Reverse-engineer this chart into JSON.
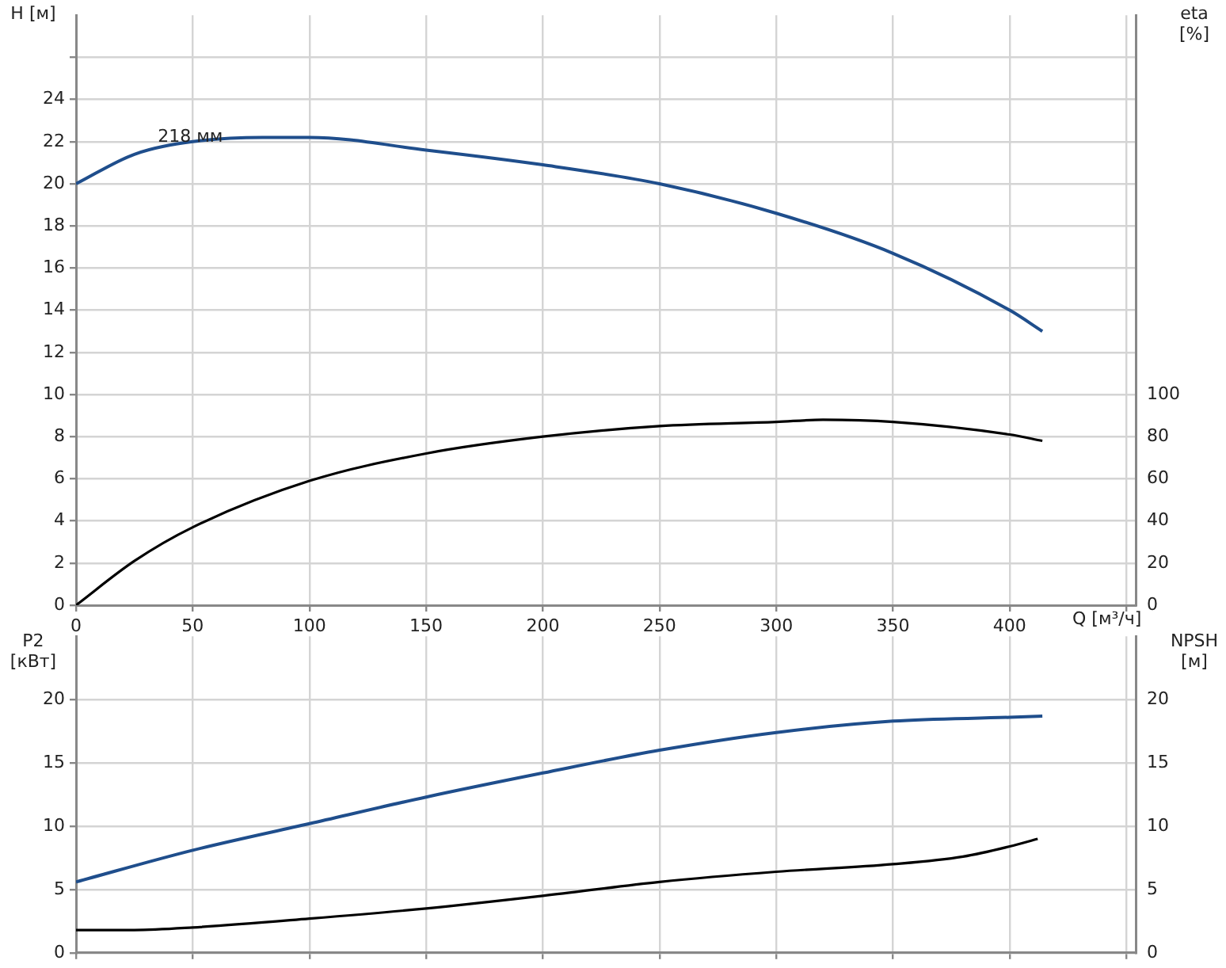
{
  "chart_data": [
    {
      "type": "line",
      "xlabel": "Q [м³/ч]",
      "ylabel": "H [м]",
      "y2label": "eta [%]",
      "xlim": [
        0,
        454
      ],
      "xticks": [
        0,
        50,
        100,
        150,
        200,
        250,
        300,
        350,
        400,
        {
          "value": 450,
          "label": null
        }
      ],
      "ylim": [
        0,
        28
      ],
      "yticks": [
        0,
        2,
        4,
        6,
        8,
        10,
        12,
        14,
        16,
        18,
        20,
        22,
        24,
        {
          "value": 26,
          "label": null
        }
      ],
      "y2lim": [
        0,
        280
      ],
      "y2ticks": [
        0,
        20,
        40,
        60,
        80,
        100
      ],
      "grid": true,
      "legend": false,
      "marker": "none",
      "annotations": [
        {
          "text": "218 мм",
          "x": 35,
          "y": 21.8
        }
      ],
      "series": [
        {
          "color": "#1f4e8c",
          "x": [
            0,
            25,
            50,
            80,
            100,
            150,
            200,
            250,
            300,
            350,
            400,
            414
          ],
          "values": [
            20,
            21.4,
            22,
            22.2,
            22.2,
            21.6,
            20.9,
            20,
            18.6,
            16.7,
            14,
            13
          ]
        },
        {
          "color": "#000000",
          "axis": "y2",
          "x": [
            0,
            25,
            50,
            100,
            150,
            200,
            250,
            300,
            320,
            350,
            400,
            414
          ],
          "values": [
            0,
            21,
            37,
            59,
            72,
            80,
            85,
            87,
            88,
            87,
            81,
            78
          ]
        }
      ]
    },
    {
      "type": "line",
      "ylabel": "P2 [кВт]",
      "y2label": "NPSH [м]",
      "xlim": [
        0,
        454
      ],
      "xticks": [
        0,
        50,
        100,
        150,
        200,
        250,
        300,
        350,
        400,
        450
      ],
      "ylim": [
        0,
        25
      ],
      "yticks": [
        0,
        5,
        10,
        15,
        20
      ],
      "y2lim": [
        0,
        25
      ],
      "y2ticks": [
        0,
        5,
        10,
        15,
        20
      ],
      "grid": true,
      "legend": false,
      "marker": "none",
      "tick_labels": "y",
      "series": [
        {
          "color": "#1f4e8c",
          "x": [
            0,
            50,
            100,
            150,
            200,
            250,
            300,
            350,
            400,
            414
          ],
          "values": [
            5.6,
            8.1,
            10.2,
            12.3,
            14.2,
            16,
            17.4,
            18.3,
            18.6,
            18.7
          ]
        },
        {
          "color": "#000000",
          "axis": "y2",
          "x": [
            0,
            25,
            50,
            100,
            150,
            200,
            250,
            300,
            350,
            380,
            400,
            412
          ],
          "values": [
            1.8,
            1.8,
            2,
            2.7,
            3.5,
            4.5,
            5.6,
            6.4,
            7,
            7.6,
            8.4,
            9
          ]
        }
      ]
    }
  ]
}
